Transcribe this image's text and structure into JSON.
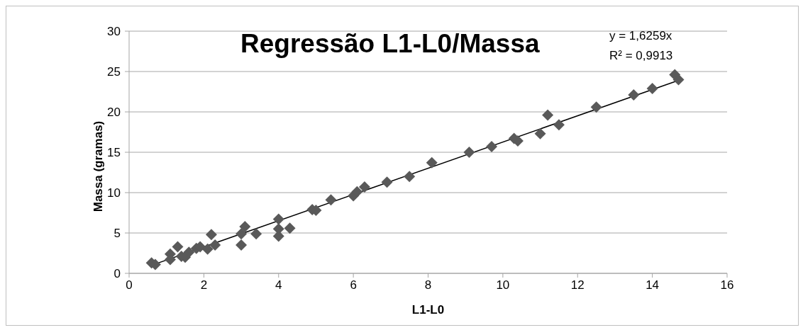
{
  "chart_data": {
    "type": "scatter",
    "title": "Regressão L1-L0/Massa",
    "xlabel": "L1-L0",
    "ylabel": "Massa (gramas)",
    "xlim": [
      0,
      16
    ],
    "xticks": [
      0,
      2,
      4,
      6,
      8,
      10,
      12,
      14,
      16
    ],
    "ylim": [
      0,
      30
    ],
    "yticks": [
      0,
      5,
      10,
      15,
      20,
      25,
      30
    ],
    "grid": "y",
    "marker": "diamond",
    "annotations": [
      "y = 1,6259x",
      "R² = 0,9913"
    ],
    "series": [
      {
        "color": "#595959",
        "x": [
          0.6,
          0.7,
          1.1,
          1.1,
          1.3,
          1.4,
          1.5,
          1.6,
          1.8,
          1.9,
          2.1,
          2.2,
          2.3,
          3.0,
          3.0,
          3.1,
          3.4,
          4.0,
          4.0,
          4.0,
          4.3,
          4.9,
          5.0,
          5.4,
          6.0,
          6.1,
          6.3,
          6.9,
          7.5,
          8.1,
          9.1,
          9.7,
          10.3,
          10.4,
          11.0,
          11.2,
          11.5,
          12.5,
          13.5,
          14.0,
          14.6,
          14.7
        ],
        "values": [
          1.3,
          1.1,
          2.4,
          1.7,
          3.3,
          2.1,
          2.0,
          2.6,
          3.1,
          3.3,
          3.0,
          4.8,
          3.5,
          3.5,
          4.9,
          5.8,
          4.9,
          6.7,
          5.5,
          4.6,
          5.6,
          7.9,
          7.8,
          9.1,
          9.6,
          10.1,
          10.7,
          11.3,
          12.0,
          13.7,
          15.0,
          15.7,
          16.7,
          16.4,
          17.3,
          19.6,
          18.4,
          20.6,
          22.1,
          22.9,
          24.6,
          24.0
        ]
      },
      {
        "type": "line",
        "marker": "none",
        "color": "#000000",
        "x": [
          0.6,
          14.7
        ],
        "values": [
          1.0,
          23.9
        ]
      }
    ]
  }
}
